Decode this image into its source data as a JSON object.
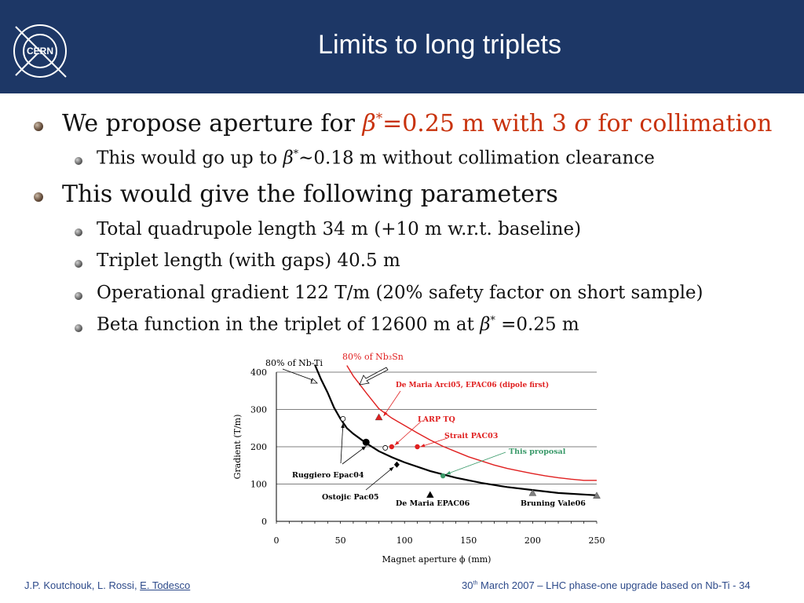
{
  "title": "Limits to long triplets",
  "logo_text": "CERN",
  "bullets": {
    "b1_pre": "We propose aperture for ",
    "b1_beta": "β",
    "b1_star": "*",
    "b1_rest": "=0.25 m with 3 ",
    "b1_sigma": "σ",
    "b1_tail": " for collimation",
    "b1_sub_pre": "This would go up to ",
    "b1_sub_beta": "β",
    "b1_sub_star": "*",
    "b1_sub_tail": "~0.18 m without collimation clearance",
    "b2": "This would give the following parameters",
    "b2_s1": "Total quadrupole length 34 m (+10 m w.r.t. baseline)",
    "b2_s2": "Triplet length (with gaps) 40.5 m",
    "b2_s3": "Operational gradient 122 T/m (20% safety factor on short sample)",
    "b2_s4_pre": "Beta function in the triplet of 12600 m at ",
    "b2_s4_beta": "β",
    "b2_s4_star": "*",
    "b2_s4_tail": " =0.25 m"
  },
  "chart_data": {
    "type": "line",
    "xlabel": "Magnet aperture ϕ (mm)",
    "ylabel": "Gradient (T/m)",
    "xlim": [
      0,
      250
    ],
    "ylim": [
      0,
      400
    ],
    "xticks": [
      0,
      50,
      100,
      150,
      200,
      250
    ],
    "yticks": [
      0,
      100,
      200,
      300,
      400
    ],
    "series": [
      {
        "name": "80% of Nb-Ti",
        "color": "#000000",
        "x": [
          30,
          35,
          40,
          45,
          50,
          55,
          60,
          70,
          80,
          90,
          100,
          120,
          140,
          160,
          180,
          200,
          220,
          250
        ],
        "y": [
          420,
          380,
          345,
          305,
          275,
          250,
          235,
          210,
          188,
          172,
          158,
          135,
          117,
          103,
          92,
          84,
          76,
          70
        ]
      },
      {
        "name": "80% of Nb3Sn",
        "color": "#e02020",
        "x": [
          55,
          60,
          70,
          80,
          90,
          100,
          110,
          120,
          130,
          140,
          150,
          160,
          170,
          180,
          190,
          200,
          210,
          220,
          230,
          240,
          250
        ],
        "y": [
          418,
          390,
          345,
          302,
          277,
          257,
          237,
          218,
          201,
          187,
          173,
          162,
          151,
          142,
          135,
          128,
          122,
          117,
          113,
          110,
          110
        ]
      }
    ],
    "points": [
      {
        "label": "De Maria Arci05, EPAC06 (dipole first)",
        "x": 80,
        "y": 278,
        "marker": "triangle",
        "color": "#e02020"
      },
      {
        "label": "LARP TQ",
        "x": 90,
        "y": 200,
        "marker": "circle",
        "color": "#e02020"
      },
      {
        "label": "Strait PAC03",
        "x": 110,
        "y": 200,
        "marker": "circle",
        "color": "#e02020"
      },
      {
        "label": "This proposal",
        "x": 130,
        "y": 122,
        "marker": "circle",
        "color": "#3a9a6a"
      },
      {
        "label": "Ruggiero Epac04",
        "x": 70,
        "y": 212,
        "marker": "circle-big",
        "color": "#000000"
      },
      {
        "label": "Ruggiero Epac04",
        "x": 52,
        "y": 275,
        "marker": "circle-open",
        "color": "#000000"
      },
      {
        "label": "Ruggiero Epac04",
        "x": 85,
        "y": 197,
        "marker": "circle-open",
        "color": "#000000"
      },
      {
        "label": "Ostojic Pac05",
        "x": 94,
        "y": 152,
        "marker": "diamond",
        "color": "#000000"
      },
      {
        "label": "De Maria EPAC06",
        "x": 120,
        "y": 70,
        "marker": "triangle",
        "color": "#000000"
      },
      {
        "label": "Bruning Vale06",
        "x": 200,
        "y": 75,
        "marker": "triangle",
        "color": "#808080"
      },
      {
        "label": "Bruning Vale06",
        "x": 250,
        "y": 68,
        "marker": "triangle",
        "color": "#808080"
      }
    ],
    "annotations": [
      {
        "text": "80% of Nb-Ti",
        "color": "#000000"
      },
      {
        "text": "80% of Nb₃Sn",
        "color": "#e02020"
      },
      {
        "text": "De Maria Arci05, EPAC06 (dipole first)",
        "color": "#e02020"
      },
      {
        "text": "LARP TQ",
        "color": "#e02020"
      },
      {
        "text": "Strait PAC03",
        "color": "#e02020"
      },
      {
        "text": "This proposal",
        "color": "#3a9a6a"
      },
      {
        "text": "Ruggiero Epac04",
        "color": "#000000"
      },
      {
        "text": "Ostojic Pac05",
        "color": "#000000"
      },
      {
        "text": "De Maria EPAC06",
        "color": "#000000"
      },
      {
        "text": "Bruning Vale06",
        "color": "#000000"
      }
    ]
  },
  "footer": {
    "authors": "J.P. Koutchouk, L. Rossi, ",
    "author_link": "E. Todesco",
    "date_day": "30",
    "date_suffix": "th",
    "event": " March 2007 – LHC phase-one upgrade based on Nb-Ti  - 34"
  },
  "colors": {
    "header_bg": "#1d3766",
    "accent_red": "#c8320c",
    "footer_blue": "#2d4a8a"
  }
}
